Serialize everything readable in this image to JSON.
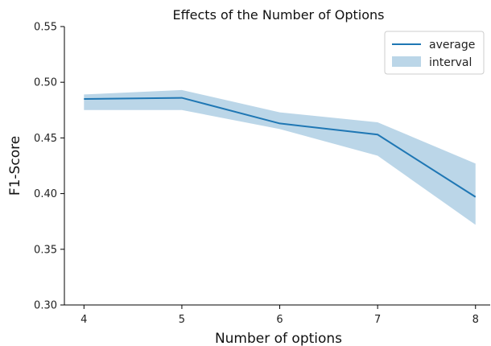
{
  "chart_data": {
    "type": "line",
    "title": "Effects of the Number of Options",
    "xlabel": "Number of options",
    "ylabel": "F1-Score",
    "x": [
      4,
      5,
      6,
      7,
      8
    ],
    "xticks": [
      "4",
      "5",
      "6",
      "7",
      "8"
    ],
    "yticks": [
      "0.30",
      "0.35",
      "0.40",
      "0.45",
      "0.50",
      "0.55"
    ],
    "ylim": [
      0.3,
      0.55
    ],
    "xlim": [
      3.8,
      8.15
    ],
    "series": [
      {
        "name": "average",
        "kind": "line",
        "values": [
          0.485,
          0.486,
          0.463,
          0.453,
          0.397
        ],
        "color": "#1f77b4"
      },
      {
        "name": "interval",
        "kind": "band",
        "lower": [
          0.475,
          0.475,
          0.458,
          0.434,
          0.372
        ],
        "upper": [
          0.489,
          0.493,
          0.473,
          0.464,
          0.427
        ],
        "color": "#1f77b4",
        "opacity": 0.3
      }
    ],
    "grid": false,
    "legend": "top-right"
  }
}
